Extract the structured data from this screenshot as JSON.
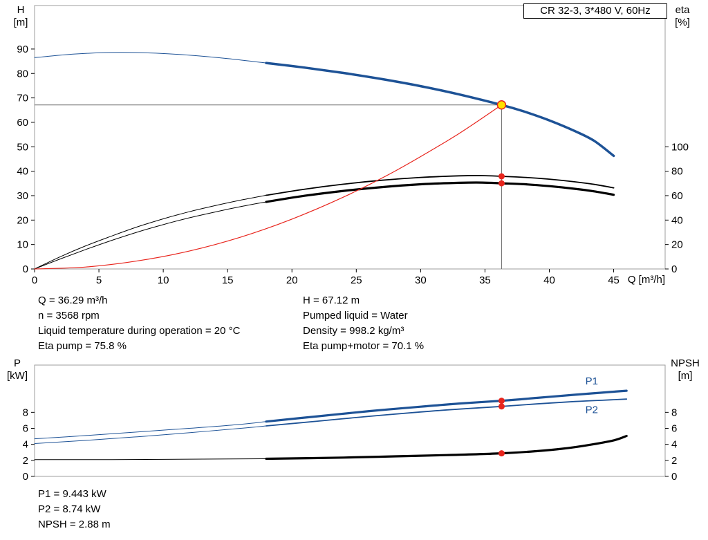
{
  "title_box": "CR 32-3, 3*480 V, 60Hz",
  "axis_labels": {
    "top_left_1": "H",
    "top_left_2": "[m]",
    "top_right_1": "eta",
    "top_right_2": "[%]",
    "x": "Q [m³/h]",
    "bottom_left_1": "P",
    "bottom_left_2": "[kW]",
    "bottom_right_1": "NPSH",
    "bottom_right_2": "[m]"
  },
  "info_top_left": [
    "Q = 36.29 m³/h",
    "n = 3568 rpm",
    "Liquid temperature during operation = 20 °C",
    "Eta pump = 75.8 %"
  ],
  "info_top_right": [
    "H = 67.12 m",
    "Pumped liquid = Water",
    "Density = 998.2 kg/m³",
    "Eta pump+motor = 70.1 %"
  ],
  "info_bottom": [
    "P1 = 9.443 kW",
    "P2 = 8.74 kW",
    "NPSH = 2.88 m"
  ],
  "colors": {
    "curve_blue": "#1d5296",
    "curve_black": "#000000",
    "curve_red": "#e8251d",
    "duty_yellow": "#ffe100",
    "duty_line_gray": "#6e6e6e",
    "frame_gray": "#9c9c9c"
  },
  "chart_data": [
    {
      "type": "line",
      "title": "CR 32-3, 3*480 V, 60Hz",
      "xlabel": "Q [m³/h]",
      "ylabel_left": "H [m]",
      "ylabel_right": "eta [%]",
      "xlim": [
        0,
        49
      ],
      "ylim_left": [
        0,
        107.8
      ],
      "ylim_right": [
        0,
        215.6
      ],
      "x_ticks": [
        0,
        5,
        10,
        15,
        20,
        25,
        30,
        35,
        40,
        45
      ],
      "y_ticks_left": [
        0,
        10,
        20,
        30,
        40,
        50,
        60,
        70,
        80,
        90
      ],
      "y_ticks_right": [
        0,
        20,
        40,
        60,
        80,
        100
      ],
      "duty_lines": {
        "q": 36.29,
        "h": 67.12
      },
      "series": [
        {
          "name": "pump-head-extended",
          "axis": "left",
          "color": "#1d5296",
          "width": 1,
          "points": [
            [
              0,
              86.5
            ],
            [
              3,
              87.9
            ],
            [
              6,
              88.6
            ],
            [
              9,
              88.4
            ],
            [
              12,
              87.5
            ],
            [
              15,
              86.1
            ],
            [
              18,
              84.3
            ]
          ]
        },
        {
          "name": "pump-head",
          "axis": "left",
          "color": "#1d5296",
          "width": 3.5,
          "points": [
            [
              18,
              84.3
            ],
            [
              21,
              82.4
            ],
            [
              24,
              80.2
            ],
            [
              27,
              77.7
            ],
            [
              30,
              74.8
            ],
            [
              33,
              71.4
            ],
            [
              36.29,
              67.12
            ],
            [
              38,
              64.5
            ],
            [
              40,
              60.8
            ],
            [
              42,
              56.4
            ],
            [
              43.5,
              52.4
            ],
            [
              45,
              46.3
            ]
          ]
        },
        {
          "name": "eta-pump-extended",
          "axis": "right",
          "color": "#000000",
          "width": 1,
          "points": [
            [
              0,
              0
            ],
            [
              2,
              10
            ],
            [
              4,
              19
            ],
            [
              6,
              27
            ],
            [
              8,
              34.5
            ],
            [
              10,
              41
            ],
            [
              12,
              46.8
            ],
            [
              14,
              51.8
            ],
            [
              16,
              56.3
            ],
            [
              18,
              60.3
            ]
          ]
        },
        {
          "name": "eta-pump",
          "axis": "right",
          "color": "#000000",
          "width": 1.8,
          "points": [
            [
              18,
              60.3
            ],
            [
              21,
              65.3
            ],
            [
              24,
              69.4
            ],
            [
              27,
              72.6
            ],
            [
              30,
              74.9
            ],
            [
              33,
              76.2
            ],
            [
              34.8,
              76.4
            ],
            [
              36.29,
              75.8
            ],
            [
              38,
              75.0
            ],
            [
              40,
              73.5
            ],
            [
              42,
              71.3
            ],
            [
              43.5,
              69.2
            ],
            [
              45,
              66.4
            ]
          ]
        },
        {
          "name": "eta-pump-motor-extended",
          "axis": "right",
          "color": "#000000",
          "width": 1,
          "points": [
            [
              0,
              0
            ],
            [
              2,
              8.2
            ],
            [
              4,
              16
            ],
            [
              6,
              23.4
            ],
            [
              8,
              30.2
            ],
            [
              10,
              36.3
            ],
            [
              12,
              41.8
            ],
            [
              14,
              46.6
            ],
            [
              16,
              51
            ],
            [
              18,
              54.9
            ]
          ]
        },
        {
          "name": "eta-pump-motor",
          "axis": "right",
          "color": "#000000",
          "width": 3.2,
          "points": [
            [
              18,
              54.9
            ],
            [
              21,
              59.9
            ],
            [
              24,
              63.9
            ],
            [
              27,
              67.0
            ],
            [
              30,
              69.3
            ],
            [
              33,
              70.5
            ],
            [
              34.8,
              70.7
            ],
            [
              36.29,
              70.1
            ],
            [
              38,
              69.4
            ],
            [
              40,
              67.8
            ],
            [
              42,
              65.6
            ],
            [
              43.5,
              63.5
            ],
            [
              45,
              60.7
            ]
          ]
        },
        {
          "name": "system-curve",
          "axis": "left",
          "color": "#e8251d",
          "width": 1.2,
          "points": [
            [
              0,
              0
            ],
            [
              4,
              0.8
            ],
            [
              8,
              3.3
            ],
            [
              12,
              7.3
            ],
            [
              16,
              13.0
            ],
            [
              20,
              20.4
            ],
            [
              24,
              29.4
            ],
            [
              28,
              40.0
            ],
            [
              32,
              52.2
            ],
            [
              34,
              58.9
            ],
            [
              36.29,
              67.12
            ]
          ]
        }
      ],
      "markers": [
        {
          "type": "duty",
          "q": 36.29,
          "v": 67.12,
          "axis": "left",
          "name": "duty-point-marker"
        },
        {
          "type": "dot",
          "q": 36.29,
          "v": 75.8,
          "axis": "right",
          "name": "eta-pump-duty-dot"
        },
        {
          "type": "dot",
          "q": 36.29,
          "v": 70.1,
          "axis": "right",
          "name": "eta-pump-motor-duty-dot"
        }
      ]
    },
    {
      "type": "line",
      "title": "",
      "xlabel": "",
      "ylabel_left": "P [kW]",
      "ylabel_right": "NPSH [m]",
      "xlim": [
        0,
        49
      ],
      "ylim_left": [
        0,
        13.9
      ],
      "ylim_right": [
        0,
        13.9
      ],
      "x_ticks": [],
      "y_ticks_left": [
        0,
        2,
        4,
        6,
        8
      ],
      "y_ticks_right": [
        0,
        2,
        4,
        6,
        8
      ],
      "series": [
        {
          "name": "p1-extended",
          "axis": "left",
          "color": "#1d5296",
          "width": 1,
          "points": [
            [
              0,
              4.7
            ],
            [
              4,
              5.1
            ],
            [
              8,
              5.55
            ],
            [
              12,
              6.0
            ],
            [
              16,
              6.5
            ],
            [
              18,
              6.85
            ]
          ]
        },
        {
          "name": "p1",
          "axis": "left",
          "color": "#1d5296",
          "width": 3.2,
          "points": [
            [
              18,
              6.85
            ],
            [
              22,
              7.5
            ],
            [
              26,
              8.15
            ],
            [
              30,
              8.7
            ],
            [
              33,
              9.1
            ],
            [
              36.29,
              9.443
            ],
            [
              39,
              9.8
            ],
            [
              42,
              10.2
            ],
            [
              44,
              10.45
            ],
            [
              46,
              10.7
            ]
          ]
        },
        {
          "name": "p2-extended",
          "axis": "left",
          "color": "#1d5296",
          "width": 1,
          "points": [
            [
              0,
              4.1
            ],
            [
              4,
              4.5
            ],
            [
              8,
              4.95
            ],
            [
              12,
              5.45
            ],
            [
              16,
              6.0
            ],
            [
              18,
              6.3
            ]
          ]
        },
        {
          "name": "p2",
          "axis": "left",
          "color": "#1d5296",
          "width": 1.8,
          "points": [
            [
              18,
              6.3
            ],
            [
              22,
              6.9
            ],
            [
              26,
              7.5
            ],
            [
              30,
              8.05
            ],
            [
              33,
              8.4
            ],
            [
              36.29,
              8.74
            ],
            [
              39,
              9.05
            ],
            [
              42,
              9.35
            ],
            [
              44,
              9.5
            ],
            [
              46,
              9.65
            ]
          ]
        },
        {
          "name": "npsh-extended",
          "axis": "right",
          "color": "#000000",
          "width": 1,
          "points": [
            [
              0,
              2.1
            ],
            [
              6,
              2.1
            ],
            [
              12,
              2.15
            ],
            [
              18,
              2.2
            ]
          ]
        },
        {
          "name": "npsh",
          "axis": "right",
          "color": "#000000",
          "width": 3.2,
          "points": [
            [
              18,
              2.2
            ],
            [
              24,
              2.35
            ],
            [
              28,
              2.5
            ],
            [
              32,
              2.66
            ],
            [
              36.29,
              2.88
            ],
            [
              39,
              3.15
            ],
            [
              41,
              3.45
            ],
            [
              43,
              3.9
            ],
            [
              45,
              4.5
            ],
            [
              46,
              5.05
            ]
          ]
        }
      ],
      "labels": [
        {
          "text": "P1",
          "q": 42.8,
          "v": 11.5
        },
        {
          "text": "P2",
          "q": 42.8,
          "v": 7.9
        }
      ],
      "markers": [
        {
          "type": "dot",
          "q": 36.29,
          "v": 9.443,
          "axis": "left",
          "name": "p1-duty-dot"
        },
        {
          "type": "dot",
          "q": 36.29,
          "v": 8.74,
          "axis": "left",
          "name": "p2-duty-dot"
        },
        {
          "type": "dot",
          "q": 36.29,
          "v": 2.88,
          "axis": "left",
          "name": "npsh-duty-dot"
        }
      ]
    }
  ]
}
